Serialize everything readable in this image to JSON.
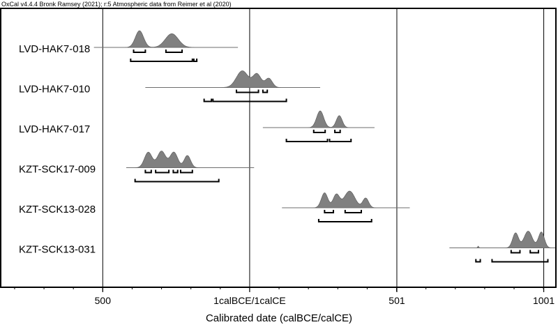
{
  "header": "OxCal v4.4.4 Bronk Ramsey (2021); r:5 Atmospheric data from Reimer et al (2020)",
  "chart_data": {
    "type": "ridgeline",
    "title": "",
    "xlabel": "Calibrated date (calBCE/calCE)",
    "ylabel": "",
    "x_axis_note": "x values are signed years; negative = BCE; tick 0 printed as 1calBCE/1calCE",
    "xlim": [
      -845,
      1040
    ],
    "x_ticks": [
      {
        "value": -500,
        "label": "500"
      },
      {
        "value": 0,
        "label": "1calBCE/1calCE"
      },
      {
        "value": 501,
        "label": "501"
      },
      {
        "value": 1001,
        "label": "1001"
      }
    ],
    "grid_x": [
      -500,
      0,
      501,
      1001
    ],
    "series": [
      {
        "name": "LVD-HAK7-018",
        "range": [
          -530,
          -40
        ],
        "peaks": [
          {
            "center": -375,
            "width": 14,
            "height": 1.0
          },
          {
            "center": -265,
            "width": 22,
            "height": 0.82
          }
        ],
        "brackets_68": [
          [
            -395,
            -355
          ],
          [
            -285,
            -230
          ]
        ],
        "brackets_95": [
          [
            -405,
            -195
          ],
          [
            -190,
            -180
          ]
        ]
      },
      {
        "name": "LVD-HAK7-010",
        "range": [
          -355,
          240
        ],
        "peaks": [
          {
            "center": -25,
            "width": 20,
            "height": 1.0
          },
          {
            "center": 25,
            "width": 14,
            "height": 0.8
          },
          {
            "center": 65,
            "width": 12,
            "height": 0.55
          }
        ],
        "brackets_68": [
          [
            -45,
            30
          ],
          [
            45,
            60
          ]
        ],
        "brackets_95": [
          [
            -155,
            -130
          ],
          [
            -125,
            125
          ]
        ]
      },
      {
        "name": "LVD-HAK7-017",
        "range": [
          45,
          425
        ],
        "peaks": [
          {
            "center": 240,
            "width": 12,
            "height": 1.0
          },
          {
            "center": 305,
            "width": 10,
            "height": 0.72
          }
        ],
        "brackets_68": [
          [
            218,
            257
          ],
          [
            290,
            308
          ]
        ],
        "brackets_95": [
          [
            125,
            265
          ],
          [
            272,
            345
          ]
        ]
      },
      {
        "name": "KZT-SCK17-009",
        "range": [
          -420,
          15
        ],
        "peaks": [
          {
            "center": -345,
            "width": 13,
            "height": 0.7
          },
          {
            "center": -300,
            "width": 14,
            "height": 0.75
          },
          {
            "center": -258,
            "width": 13,
            "height": 0.7
          },
          {
            "center": -212,
            "width": 11,
            "height": 0.55
          }
        ],
        "brackets_68": [
          [
            -355,
            -335
          ],
          [
            -320,
            -275
          ],
          [
            -260,
            -245
          ],
          [
            -235,
            -195
          ]
        ],
        "brackets_95": [
          [
            -390,
            -105
          ]
        ]
      },
      {
        "name": "KZT-SCK13-028",
        "range": [
          110,
          545
        ],
        "peaks": [
          {
            "center": 255,
            "width": 11,
            "height": 0.85
          },
          {
            "center": 295,
            "width": 11,
            "height": 0.75
          },
          {
            "center": 340,
            "width": 18,
            "height": 0.95
          },
          {
            "center": 395,
            "width": 10,
            "height": 0.55
          }
        ],
        "brackets_68": [
          [
            255,
            285
          ],
          [
            325,
            380
          ]
        ],
        "brackets_95": [
          [
            235,
            415
          ]
        ]
      },
      {
        "name": "KZT-SCK13-031",
        "range": [
          680,
          1040
        ],
        "peaks": [
          {
            "center": 778,
            "width": 2,
            "height": 0.1
          },
          {
            "center": 905,
            "width": 10,
            "height": 0.85
          },
          {
            "center": 948,
            "width": 14,
            "height": 0.95
          },
          {
            "center": 993,
            "width": 10,
            "height": 0.9
          }
        ],
        "brackets_68": [
          [
            890,
            920
          ],
          [
            955,
            983
          ]
        ],
        "brackets_95": [
          [
            770,
            785
          ],
          [
            825,
            1015
          ]
        ]
      }
    ]
  }
}
